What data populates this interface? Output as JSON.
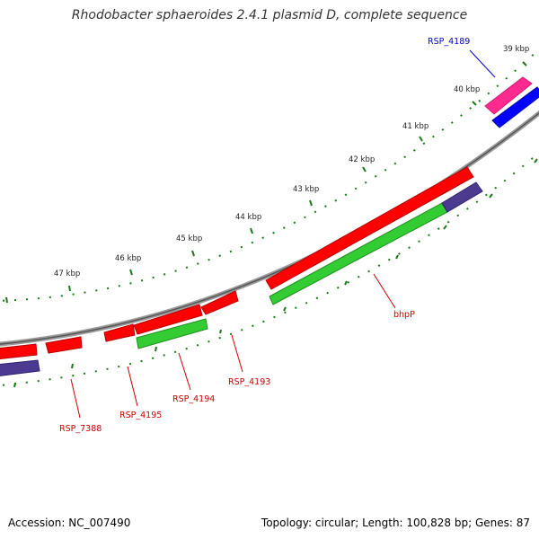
{
  "title": "Rhodobacter sphaeroides 2.4.1 plasmid D, complete sequence",
  "footer": {
    "accession": "Accession: NC_007490",
    "summary": "Topology: circular; Length: 100,828 bp; Genes: 87"
  },
  "scale_labels": [
    "39 kbp",
    "40 kbp",
    "41 kbp",
    "42 kbp",
    "43 kbp",
    "44 kbp",
    "45 kbp",
    "46 kbp",
    "47 kbp"
  ],
  "gene_labels": {
    "rsp_4189": "RSP_4189",
    "bhpp": "bhpP",
    "rsp_4193": "RSP_4193",
    "rsp_4194": "RSP_4194",
    "rsp_4195": "RSP_4195",
    "rsp_7388": "RSP_7388"
  },
  "colors": {
    "cds_red": "#ff0000",
    "cds_magenta": "#ff1493",
    "cds_blue": "#0000ff",
    "cog_green": "#33cc33",
    "cog_purple": "#4b3a8f",
    "backbone": "#888888",
    "ticks": "#1a7a1a",
    "label_red": "#cc0000",
    "label_blue": "#0000cc"
  }
}
